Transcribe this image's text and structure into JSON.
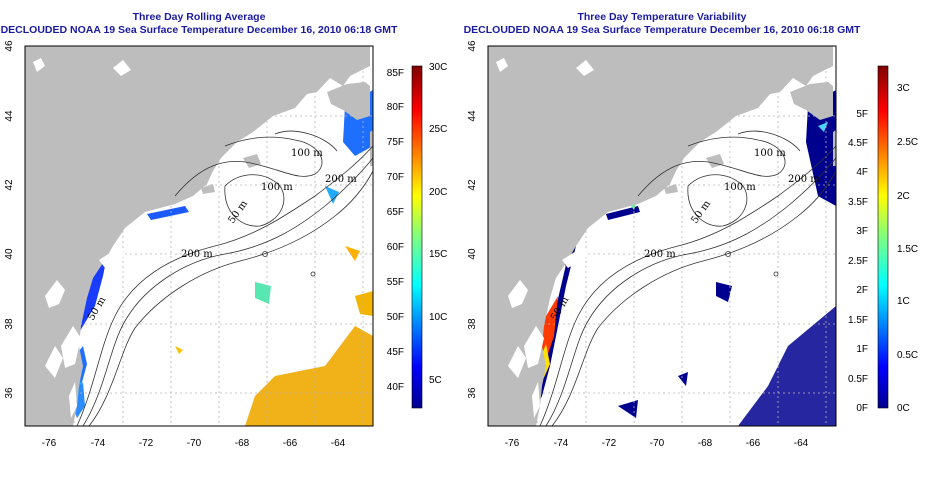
{
  "panels": [
    {
      "id": "avg",
      "title_line1": "Three Day Rolling Average",
      "title_line2": "DECLOUDED NOAA 19 Sea Surface Temperature December 16, 2010 06:18 GMT",
      "colorbar": {
        "type": "temperature",
        "fahrenheit_labels": [
          "85F",
          "80F",
          "75F",
          "70F",
          "65F",
          "60F",
          "55F",
          "50F",
          "45F",
          "40F"
        ],
        "celsius_labels": [
          "30C",
          "25C",
          "20C",
          "15C",
          "10C",
          "5C"
        ]
      }
    },
    {
      "id": "var",
      "title_line1": "Three Day Temperature Variability",
      "title_line2": "DECLOUDED NOAA 19 Sea Surface Temperature December 16, 2010 06:18 GMT",
      "colorbar": {
        "type": "variability",
        "fahrenheit_labels": [
          "5F",
          "4.5F",
          "4F",
          "3.5F",
          "3F",
          "2.5F",
          "2F",
          "1.5F",
          "1F",
          "0.5F",
          "0F"
        ],
        "celsius_labels": [
          "3C",
          "2.5C",
          "2C",
          "1.5C",
          "1C",
          "0.5C",
          "0C"
        ]
      }
    }
  ],
  "map": {
    "lon_ticks": [
      "-76",
      "-74",
      "-72",
      "-70",
      "-68",
      "-66",
      "-64"
    ],
    "lat_ticks": [
      "46",
      "44",
      "42",
      "40",
      "38",
      "36"
    ],
    "depth_labels": {
      "l100a": "100 m",
      "l100b": "100 m",
      "l50": "50 m",
      "l200a": "200 m",
      "l200b": "200 m",
      "l50b": "50 m"
    },
    "land_color": "#bdbdbd",
    "grid": true
  },
  "colors": {
    "title": "#1a1aa0",
    "jet": [
      "#00008f",
      "#0000ff",
      "#007fff",
      "#00ffff",
      "#7fff7f",
      "#ffff00",
      "#ff7f00",
      "#ff0000",
      "#7f0000"
    ]
  }
}
